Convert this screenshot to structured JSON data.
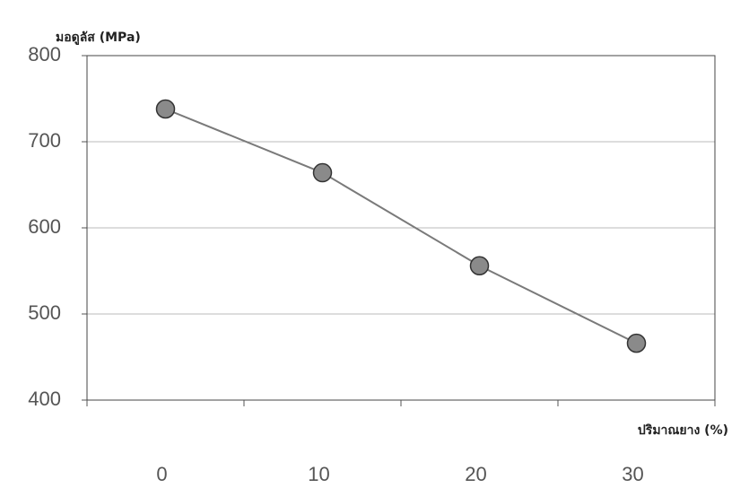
{
  "chart_data": {
    "type": "line",
    "y_label": "มอดูลัส (MPa)",
    "x_label": "ปริมาณยาง (%)",
    "categories": [
      "0",
      "10",
      "20",
      "30"
    ],
    "values": [
      738,
      664,
      556,
      466
    ],
    "color": "#7a7a7a",
    "ylim": [
      400,
      800
    ],
    "yticks": [
      400,
      500,
      600,
      700,
      800
    ],
    "grid": true
  }
}
